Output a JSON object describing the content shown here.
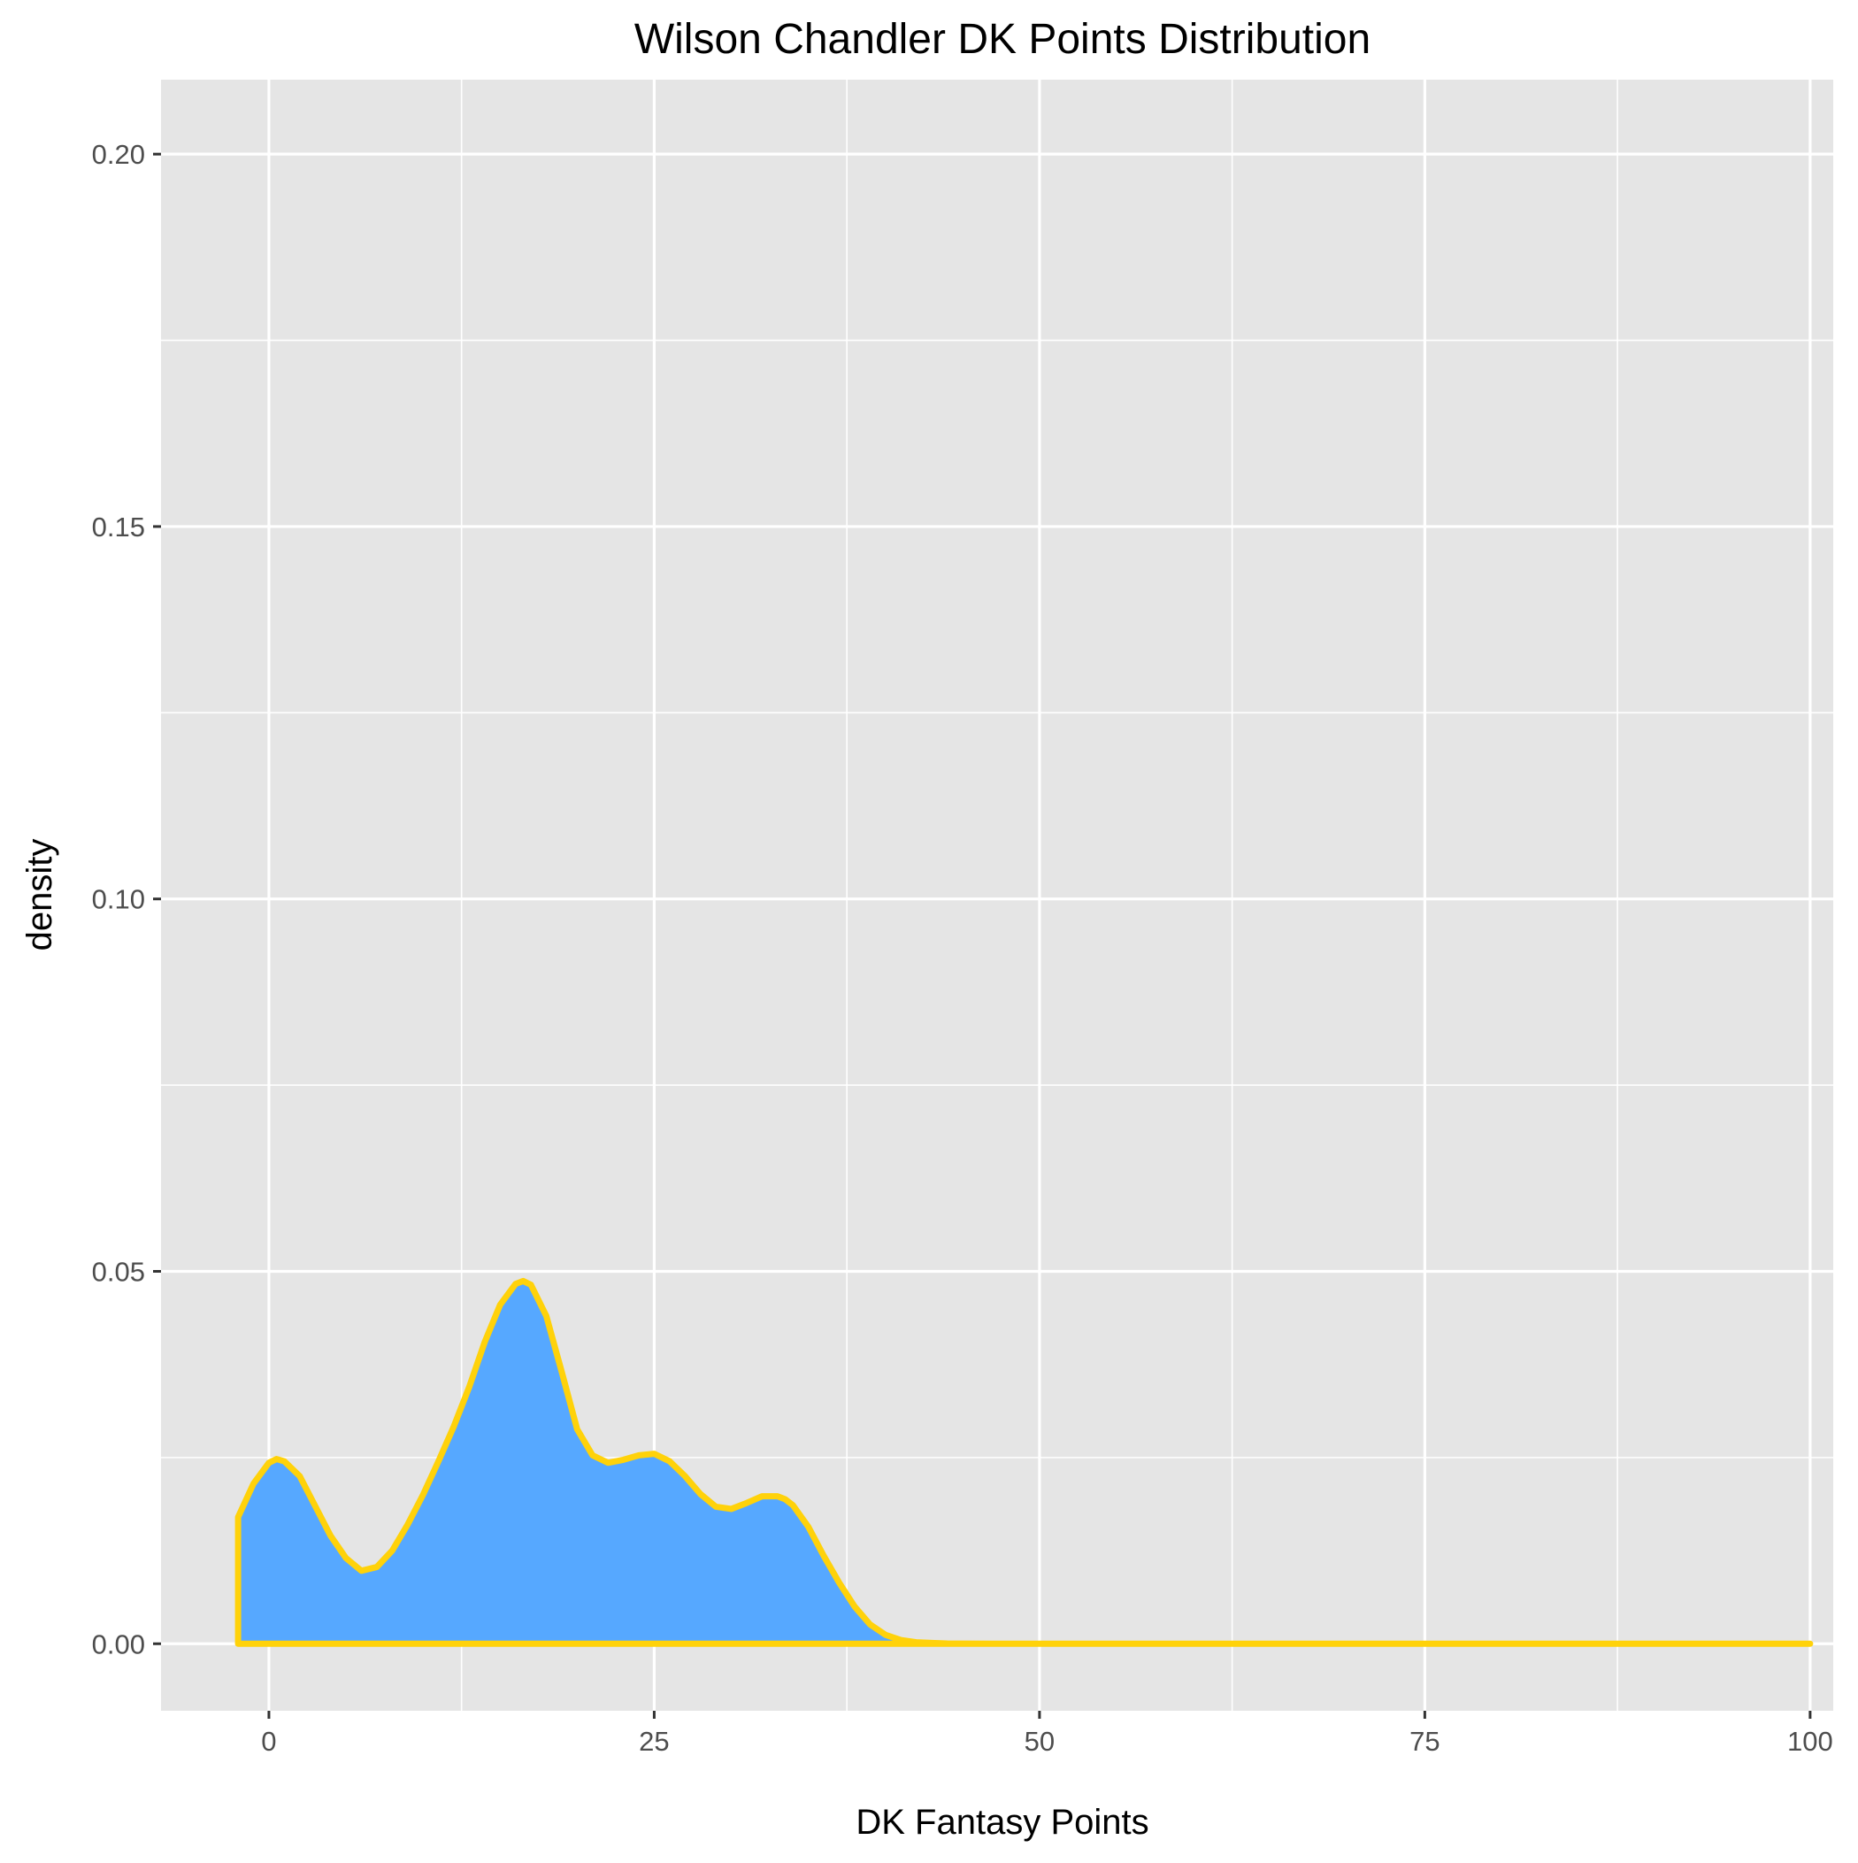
{
  "chart_data": {
    "type": "area",
    "title": "Wilson Chandler DK Points Distribution",
    "xlabel": "DK Fantasy Points",
    "ylabel": "density",
    "xlim": [
      -7,
      101.5
    ],
    "ylim": [
      -0.009,
      0.21
    ],
    "x_ticks": [
      0,
      25,
      50,
      75,
      100
    ],
    "x_tick_labels": [
      "0",
      "25",
      "50",
      "75",
      "100"
    ],
    "x_minor_ticks": [
      12.5,
      37.5,
      62.5,
      87.5
    ],
    "y_ticks": [
      0.0,
      0.05,
      0.1,
      0.15,
      0.2
    ],
    "y_tick_labels": [
      "0.00",
      "0.05",
      "0.10",
      "0.15",
      "0.20"
    ],
    "y_minor_ticks": [
      0.025,
      0.075,
      0.125,
      0.175
    ],
    "grid": true,
    "legend": "none",
    "series": [
      {
        "x": [
          -2,
          -1,
          0,
          0.5,
          1,
          2,
          3,
          4,
          5,
          6,
          7,
          8,
          9,
          10,
          11,
          12,
          13,
          14,
          15,
          16,
          16.5,
          17,
          18,
          19,
          20,
          21,
          22,
          23,
          24,
          25,
          26,
          27,
          28,
          29,
          30,
          31,
          32,
          33,
          33.5,
          34,
          35,
          36,
          37,
          38,
          39,
          40,
          41,
          42,
          43,
          44,
          45,
          47,
          50,
          60,
          70,
          80,
          90,
          100
        ],
        "y": [
          0.017,
          0.0215,
          0.0243,
          0.0248,
          0.0245,
          0.0225,
          0.0185,
          0.0145,
          0.0115,
          0.0098,
          0.0103,
          0.0125,
          0.016,
          0.02,
          0.0245,
          0.0292,
          0.0345,
          0.0405,
          0.0455,
          0.0483,
          0.0487,
          0.0482,
          0.044,
          0.0365,
          0.0288,
          0.0253,
          0.0243,
          0.0247,
          0.0253,
          0.0255,
          0.0245,
          0.0225,
          0.0201,
          0.0184,
          0.0181,
          0.0189,
          0.0198,
          0.0198,
          0.0194,
          0.0186,
          0.0157,
          0.0118,
          0.0082,
          0.005,
          0.0026,
          0.0012,
          0.0005,
          0.0002,
          0.0001,
          3e-05,
          1e-05,
          0,
          0,
          0,
          0,
          0,
          0,
          0
        ]
      }
    ],
    "colors": {
      "panel_background": "#e5e5e5",
      "grid_line": "#ffffff",
      "fill": "#56a8ff",
      "outline": "#ffd20a",
      "tick_label": "#4d4d4d",
      "tick_mark": "#333333",
      "text": "#000000"
    }
  }
}
